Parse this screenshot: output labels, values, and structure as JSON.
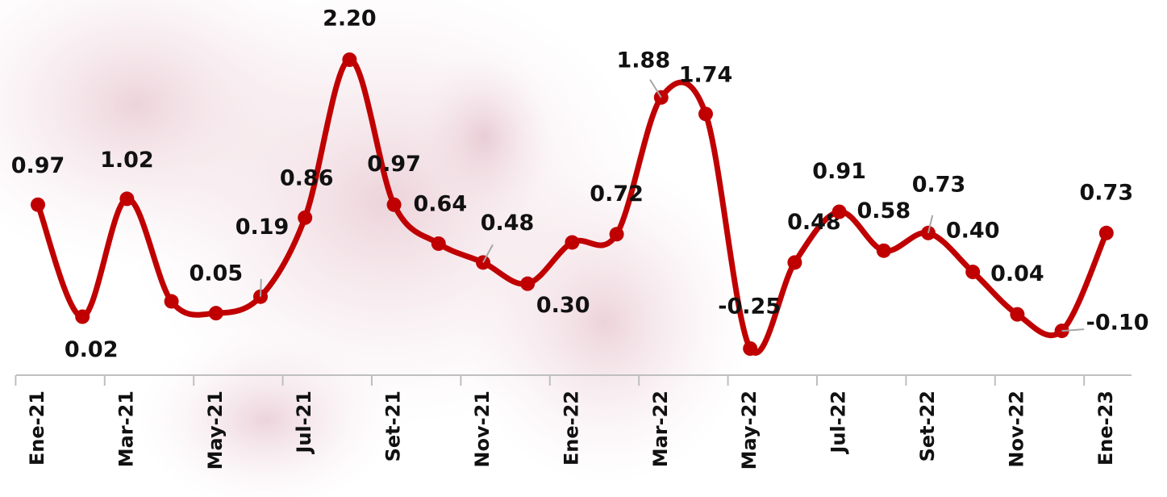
{
  "chart_data": {
    "type": "line",
    "categories": [
      "Ene-21",
      null,
      "Mar-21",
      null,
      "May-21",
      null,
      "Jul-21",
      null,
      "Set-21",
      null,
      "Nov-21",
      null,
      "Ene-22",
      null,
      "Mar-22",
      null,
      "May-22",
      null,
      "Jul-22",
      null,
      "Set-22",
      null,
      "Nov-22",
      null,
      "Ene-23"
    ],
    "series": [
      {
        "color": "#c00000",
        "values": [
          0.97,
          0.02,
          1.02,
          0.15,
          0.05,
          0.19,
          0.86,
          2.2,
          0.97,
          0.64,
          0.48,
          0.3,
          0.65,
          0.72,
          1.88,
          1.74,
          -0.25,
          0.48,
          0.91,
          0.58,
          0.73,
          0.4,
          0.04,
          -0.1,
          0.73
        ],
        "value_labels": [
          "0.97",
          "0.02",
          "1.02",
          null,
          "0.05",
          "0.19",
          "0.86",
          "2.20",
          "0.97",
          "0.64",
          "0.48",
          "0.30",
          null,
          "0.72",
          "1.88",
          "1.74",
          "-0.25",
          "0.48",
          "0.91",
          "0.58",
          "0.73",
          "0.40",
          "0.04",
          "-0.10",
          "0.73"
        ]
      }
    ]
  }
}
